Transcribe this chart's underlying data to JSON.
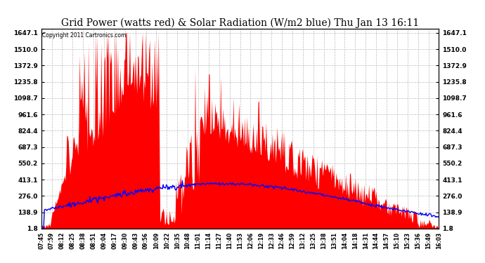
{
  "title": "Grid Power (watts red) & Solar Radiation (W/m2 blue) Thu Jan 13 16:11",
  "copyright": "Copyright 2011 Cartronics.com",
  "yticks": [
    1.8,
    138.9,
    276.0,
    413.1,
    550.2,
    687.3,
    824.4,
    961.6,
    1098.7,
    1235.8,
    1372.9,
    1510.0,
    1647.1
  ],
  "ylim": [
    1.8,
    1647.1
  ],
  "x_labels": [
    "07:45",
    "07:59",
    "08:12",
    "08:25",
    "08:38",
    "08:51",
    "09:04",
    "09:17",
    "09:30",
    "09:43",
    "09:56",
    "10:09",
    "10:22",
    "10:35",
    "10:48",
    "11:01",
    "11:14",
    "11:27",
    "11:40",
    "11:53",
    "12:06",
    "12:19",
    "12:33",
    "12:46",
    "12:59",
    "13:12",
    "13:25",
    "13:38",
    "13:51",
    "14:04",
    "14:18",
    "14:31",
    "14:44",
    "14:57",
    "15:10",
    "15:23",
    "15:36",
    "15:49",
    "16:03"
  ],
  "background_color": "#ffffff",
  "fill_color": "#ff0000",
  "line_color": "#0000ff",
  "title_fontsize": 10,
  "grid_color": "#bbbbbb",
  "figwidth": 6.9,
  "figheight": 3.75,
  "dpi": 100
}
